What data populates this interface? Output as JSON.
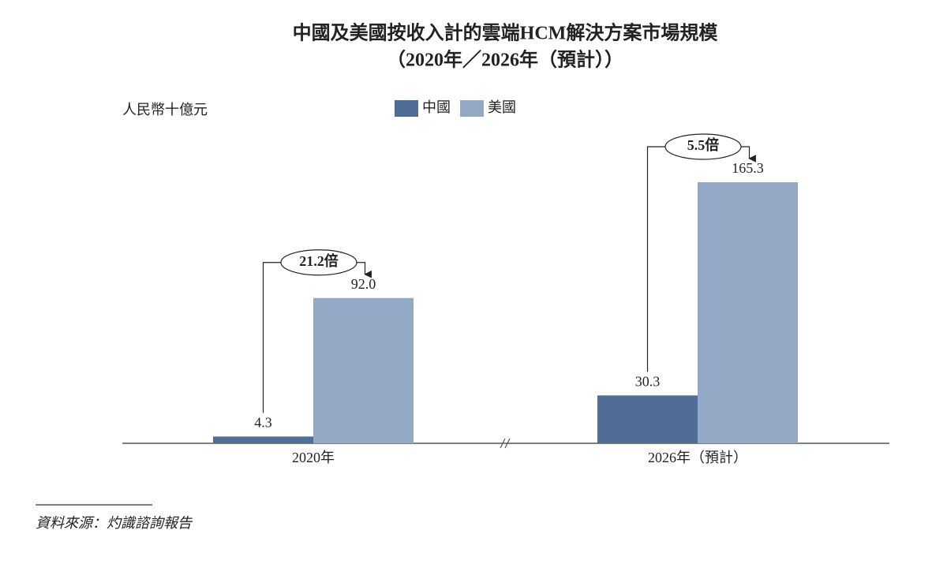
{
  "chart_data": {
    "type": "bar",
    "title": "中國及美國按收入計的雲端HCM解決方案市場規模",
    "subtitle": "（2020年／2026年（預計））",
    "y_label": "人民幣十億元",
    "categories": [
      "2020年",
      "2026年（預計）"
    ],
    "series": [
      {
        "name": "中國",
        "color": "#4f6d96",
        "values": [
          4.3,
          30.3
        ],
        "value_labels": [
          "4.3",
          "30.3"
        ]
      },
      {
        "name": "美國",
        "color": "#93a9c6",
        "values": [
          92.0,
          165.3
        ],
        "value_labels": [
          "92.0",
          "165.3"
        ]
      }
    ],
    "annotations": [
      "21.2倍",
      "5.5倍"
    ],
    "source": "資料來源：灼識諮詢報告"
  }
}
